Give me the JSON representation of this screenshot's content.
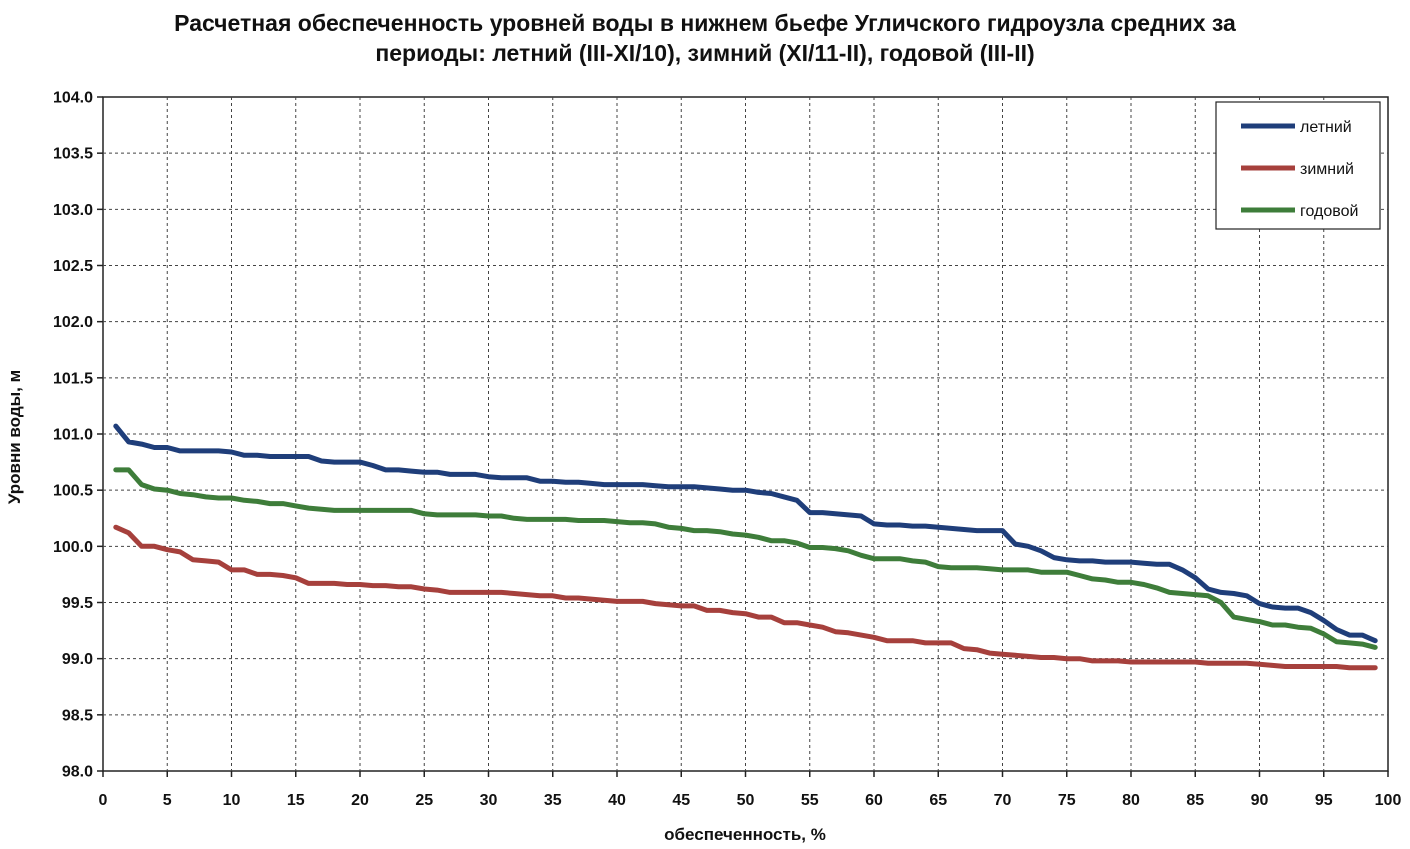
{
  "chart_data": {
    "type": "line",
    "title_line1": "Расчетная обеспеченность уровней воды в нижнем бьефе Угличского гидроузла средних за",
    "title_line2": "периоды: летний (III-XI/10),  зимний (XI/11-II),  годовой (III-II)",
    "xlabel": "обеспеченность,  %",
    "ylabel": "Уровни воды, м",
    "xlim": [
      0,
      100
    ],
    "ylim": [
      98.0,
      104.0
    ],
    "xticks": [
      "0",
      "5",
      "10",
      "15",
      "20",
      "25",
      "30",
      "35",
      "40",
      "45",
      "50",
      "55",
      "60",
      "65",
      "70",
      "75",
      "80",
      "85",
      "90",
      "95",
      "100"
    ],
    "yticks": [
      "104.0",
      "103.5",
      "103.0",
      "102.5",
      "102.0",
      "101.5",
      "101.0",
      "100.5",
      "100.0",
      "99.5",
      "99.0",
      "98.5",
      "98.0"
    ],
    "grid": true,
    "legend_position": "top-right",
    "series": [
      {
        "name": "летний",
        "color": "#1f3e7a",
        "points": [
          [
            1,
            101.07
          ],
          [
            2,
            100.93
          ],
          [
            3,
            100.91
          ],
          [
            4,
            100.88
          ],
          [
            5,
            100.88
          ],
          [
            6,
            100.85
          ],
          [
            7,
            100.85
          ],
          [
            8,
            100.85
          ],
          [
            9,
            100.85
          ],
          [
            10,
            100.84
          ],
          [
            11,
            100.81
          ],
          [
            12,
            100.81
          ],
          [
            13,
            100.8
          ],
          [
            14,
            100.8
          ],
          [
            15,
            100.8
          ],
          [
            16,
            100.8
          ],
          [
            17,
            100.76
          ],
          [
            18,
            100.75
          ],
          [
            19,
            100.75
          ],
          [
            20,
            100.75
          ],
          [
            21,
            100.72
          ],
          [
            22,
            100.68
          ],
          [
            23,
            100.68
          ],
          [
            24,
            100.67
          ],
          [
            25,
            100.66
          ],
          [
            26,
            100.66
          ],
          [
            27,
            100.64
          ],
          [
            28,
            100.64
          ],
          [
            29,
            100.64
          ],
          [
            30,
            100.62
          ],
          [
            31,
            100.61
          ],
          [
            32,
            100.61
          ],
          [
            33,
            100.61
          ],
          [
            34,
            100.58
          ],
          [
            35,
            100.58
          ],
          [
            36,
            100.57
          ],
          [
            37,
            100.57
          ],
          [
            38,
            100.56
          ],
          [
            39,
            100.55
          ],
          [
            40,
            100.55
          ],
          [
            41,
            100.55
          ],
          [
            42,
            100.55
          ],
          [
            43,
            100.54
          ],
          [
            44,
            100.53
          ],
          [
            45,
            100.53
          ],
          [
            46,
            100.53
          ],
          [
            47,
            100.52
          ],
          [
            48,
            100.51
          ],
          [
            49,
            100.5
          ],
          [
            50,
            100.5
          ],
          [
            51,
            100.48
          ],
          [
            52,
            100.47
          ],
          [
            53,
            100.44
          ],
          [
            54,
            100.41
          ],
          [
            55,
            100.3
          ],
          [
            56,
            100.3
          ],
          [
            57,
            100.29
          ],
          [
            58,
            100.28
          ],
          [
            59,
            100.27
          ],
          [
            60,
            100.2
          ],
          [
            61,
            100.19
          ],
          [
            62,
            100.19
          ],
          [
            63,
            100.18
          ],
          [
            64,
            100.18
          ],
          [
            65,
            100.17
          ],
          [
            66,
            100.16
          ],
          [
            67,
            100.15
          ],
          [
            68,
            100.14
          ],
          [
            69,
            100.14
          ],
          [
            70,
            100.14
          ],
          [
            71,
            100.02
          ],
          [
            72,
            100.0
          ],
          [
            73,
            99.96
          ],
          [
            74,
            99.9
          ],
          [
            75,
            99.88
          ],
          [
            76,
            99.87
          ],
          [
            77,
            99.87
          ],
          [
            78,
            99.86
          ],
          [
            79,
            99.86
          ],
          [
            80,
            99.86
          ],
          [
            81,
            99.85
          ],
          [
            82,
            99.84
          ],
          [
            83,
            99.84
          ],
          [
            84,
            99.79
          ],
          [
            85,
            99.72
          ],
          [
            86,
            99.62
          ],
          [
            87,
            99.59
          ],
          [
            88,
            99.58
          ],
          [
            89,
            99.56
          ],
          [
            90,
            99.49
          ],
          [
            91,
            99.46
          ],
          [
            92,
            99.45
          ],
          [
            93,
            99.45
          ],
          [
            94,
            99.41
          ],
          [
            95,
            99.34
          ],
          [
            96,
            99.26
          ],
          [
            97,
            99.21
          ],
          [
            98,
            99.21
          ],
          [
            99,
            99.16
          ]
        ]
      },
      {
        "name": "зимний",
        "color": "#a6403c",
        "points": [
          [
            1,
            100.17
          ],
          [
            2,
            100.12
          ],
          [
            3,
            100.0
          ],
          [
            4,
            100.0
          ],
          [
            5,
            99.97
          ],
          [
            6,
            99.95
          ],
          [
            7,
            99.88
          ],
          [
            8,
            99.87
          ],
          [
            9,
            99.86
          ],
          [
            10,
            99.79
          ],
          [
            11,
            99.79
          ],
          [
            12,
            99.75
          ],
          [
            13,
            99.75
          ],
          [
            14,
            99.74
          ],
          [
            15,
            99.72
          ],
          [
            16,
            99.67
          ],
          [
            17,
            99.67
          ],
          [
            18,
            99.67
          ],
          [
            19,
            99.66
          ],
          [
            20,
            99.66
          ],
          [
            21,
            99.65
          ],
          [
            22,
            99.65
          ],
          [
            23,
            99.64
          ],
          [
            24,
            99.64
          ],
          [
            25,
            99.62
          ],
          [
            26,
            99.61
          ],
          [
            27,
            99.59
          ],
          [
            28,
            99.59
          ],
          [
            29,
            99.59
          ],
          [
            30,
            99.59
          ],
          [
            31,
            99.59
          ],
          [
            32,
            99.58
          ],
          [
            33,
            99.57
          ],
          [
            34,
            99.56
          ],
          [
            35,
            99.56
          ],
          [
            36,
            99.54
          ],
          [
            37,
            99.54
          ],
          [
            38,
            99.53
          ],
          [
            39,
            99.52
          ],
          [
            40,
            99.51
          ],
          [
            41,
            99.51
          ],
          [
            42,
            99.51
          ],
          [
            43,
            99.49
          ],
          [
            44,
            99.48
          ],
          [
            45,
            99.47
          ],
          [
            46,
            99.47
          ],
          [
            47,
            99.43
          ],
          [
            48,
            99.43
          ],
          [
            49,
            99.41
          ],
          [
            50,
            99.4
          ],
          [
            51,
            99.37
          ],
          [
            52,
            99.37
          ],
          [
            53,
            99.32
          ],
          [
            54,
            99.32
          ],
          [
            55,
            99.3
          ],
          [
            56,
            99.28
          ],
          [
            57,
            99.24
          ],
          [
            58,
            99.23
          ],
          [
            59,
            99.21
          ],
          [
            60,
            99.19
          ],
          [
            61,
            99.16
          ],
          [
            62,
            99.16
          ],
          [
            63,
            99.16
          ],
          [
            64,
            99.14
          ],
          [
            65,
            99.14
          ],
          [
            66,
            99.14
          ],
          [
            67,
            99.09
          ],
          [
            68,
            99.08
          ],
          [
            69,
            99.05
          ],
          [
            70,
            99.04
          ],
          [
            71,
            99.03
          ],
          [
            72,
            99.02
          ],
          [
            73,
            99.01
          ],
          [
            74,
            99.01
          ],
          [
            75,
            99.0
          ],
          [
            76,
            99.0
          ],
          [
            77,
            98.98
          ],
          [
            78,
            98.98
          ],
          [
            79,
            98.98
          ],
          [
            80,
            98.97
          ],
          [
            81,
            98.97
          ],
          [
            82,
            98.97
          ],
          [
            83,
            98.97
          ],
          [
            84,
            98.97
          ],
          [
            85,
            98.97
          ],
          [
            86,
            98.96
          ],
          [
            87,
            98.96
          ],
          [
            88,
            98.96
          ],
          [
            89,
            98.96
          ],
          [
            90,
            98.95
          ],
          [
            91,
            98.94
          ],
          [
            92,
            98.93
          ],
          [
            93,
            98.93
          ],
          [
            94,
            98.93
          ],
          [
            95,
            98.93
          ],
          [
            96,
            98.93
          ],
          [
            97,
            98.92
          ],
          [
            98,
            98.92
          ],
          [
            99,
            98.92
          ]
        ]
      },
      {
        "name": "годовой",
        "color": "#3e7d3a",
        "points": [
          [
            1,
            100.68
          ],
          [
            2,
            100.68
          ],
          [
            3,
            100.55
          ],
          [
            4,
            100.51
          ],
          [
            5,
            100.5
          ],
          [
            6,
            100.47
          ],
          [
            7,
            100.46
          ],
          [
            8,
            100.44
          ],
          [
            9,
            100.43
          ],
          [
            10,
            100.43
          ],
          [
            11,
            100.41
          ],
          [
            12,
            100.4
          ],
          [
            13,
            100.38
          ],
          [
            14,
            100.38
          ],
          [
            15,
            100.36
          ],
          [
            16,
            100.34
          ],
          [
            17,
            100.33
          ],
          [
            18,
            100.32
          ],
          [
            19,
            100.32
          ],
          [
            20,
            100.32
          ],
          [
            21,
            100.32
          ],
          [
            22,
            100.32
          ],
          [
            23,
            100.32
          ],
          [
            24,
            100.32
          ],
          [
            25,
            100.29
          ],
          [
            26,
            100.28
          ],
          [
            27,
            100.28
          ],
          [
            28,
            100.28
          ],
          [
            29,
            100.28
          ],
          [
            30,
            100.27
          ],
          [
            31,
            100.27
          ],
          [
            32,
            100.25
          ],
          [
            33,
            100.24
          ],
          [
            34,
            100.24
          ],
          [
            35,
            100.24
          ],
          [
            36,
            100.24
          ],
          [
            37,
            100.23
          ],
          [
            38,
            100.23
          ],
          [
            39,
            100.23
          ],
          [
            40,
            100.22
          ],
          [
            41,
            100.21
          ],
          [
            42,
            100.21
          ],
          [
            43,
            100.2
          ],
          [
            44,
            100.17
          ],
          [
            45,
            100.16
          ],
          [
            46,
            100.14
          ],
          [
            47,
            100.14
          ],
          [
            48,
            100.13
          ],
          [
            49,
            100.11
          ],
          [
            50,
            100.1
          ],
          [
            51,
            100.08
          ],
          [
            52,
            100.05
          ],
          [
            53,
            100.05
          ],
          [
            54,
            100.03
          ],
          [
            55,
            99.99
          ],
          [
            56,
            99.99
          ],
          [
            57,
            99.98
          ],
          [
            58,
            99.96
          ],
          [
            59,
            99.92
          ],
          [
            60,
            99.89
          ],
          [
            61,
            99.89
          ],
          [
            62,
            99.89
          ],
          [
            63,
            99.87
          ],
          [
            64,
            99.86
          ],
          [
            65,
            99.82
          ],
          [
            66,
            99.81
          ],
          [
            67,
            99.81
          ],
          [
            68,
            99.81
          ],
          [
            69,
            99.8
          ],
          [
            70,
            99.79
          ],
          [
            71,
            99.79
          ],
          [
            72,
            99.79
          ],
          [
            73,
            99.77
          ],
          [
            74,
            99.77
          ],
          [
            75,
            99.77
          ],
          [
            76,
            99.74
          ],
          [
            77,
            99.71
          ],
          [
            78,
            99.7
          ],
          [
            79,
            99.68
          ],
          [
            80,
            99.68
          ],
          [
            81,
            99.66
          ],
          [
            82,
            99.63
          ],
          [
            83,
            99.59
          ],
          [
            84,
            99.58
          ],
          [
            85,
            99.57
          ],
          [
            86,
            99.56
          ],
          [
            87,
            99.5
          ],
          [
            88,
            99.37
          ],
          [
            89,
            99.35
          ],
          [
            90,
            99.33
          ],
          [
            91,
            99.3
          ],
          [
            92,
            99.3
          ],
          [
            93,
            99.28
          ],
          [
            94,
            99.27
          ],
          [
            95,
            99.22
          ],
          [
            96,
            99.15
          ],
          [
            97,
            99.14
          ],
          [
            98,
            99.13
          ],
          [
            99,
            99.1
          ]
        ]
      }
    ]
  }
}
